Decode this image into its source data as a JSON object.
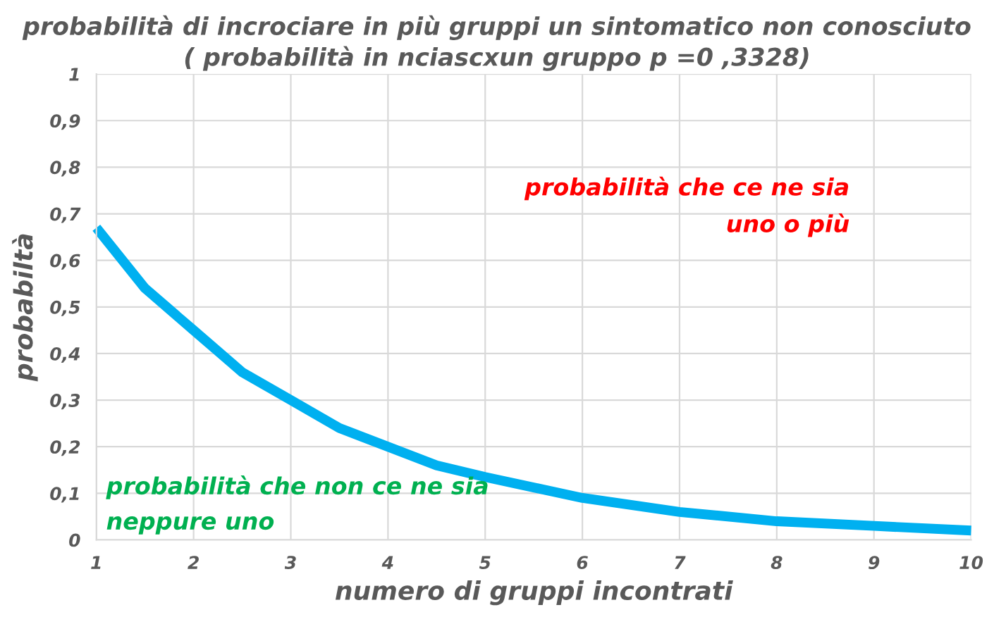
{
  "chart_data": {
    "type": "line",
    "title": "probabilità di incrociare in più gruppi un sintomatico non conosciuto",
    "subtitle": "( probabilità in nciascxun gruppo p =0 ,3328)",
    "xlabel": "numero di gruppi incontrati",
    "ylabel": "probabiltà",
    "x": [
      1,
      1.5,
      2,
      2.5,
      3,
      3.5,
      4,
      4.5,
      5,
      6,
      7,
      8,
      9,
      10
    ],
    "series": [
      {
        "color": "#00b0f0",
        "values": [
          0.67,
          0.54,
          0.45,
          0.36,
          0.3,
          0.24,
          0.2,
          0.16,
          0.135,
          0.09,
          0.06,
          0.04,
          0.03,
          0.02
        ]
      }
    ],
    "xlim": [
      1,
      10
    ],
    "xticks": [
      1,
      2,
      3,
      4,
      5,
      6,
      7,
      8,
      9,
      10
    ],
    "ylim": [
      0,
      1
    ],
    "yticks": [
      0,
      {
        "value": 0.1,
        "label": "0,1"
      },
      {
        "value": 0.2,
        "label": "0,2"
      },
      {
        "value": 0.3,
        "label": "0,3"
      },
      {
        "value": 0.4,
        "label": "0,4"
      },
      {
        "value": 0.5,
        "label": "0,5"
      },
      {
        "value": 0.6,
        "label": "0,6"
      },
      {
        "value": 0.7,
        "label": "0,7"
      },
      {
        "value": 0.8,
        "label": "0,8"
      },
      {
        "value": 0.9,
        "label": "0,9"
      },
      1
    ],
    "grid": true,
    "marker": "none",
    "line_style": "solid",
    "annotations": [
      "probabilità che ce ne sia\nuno o più",
      "probabilità che non ce ne sia\nneppure uno"
    ]
  }
}
